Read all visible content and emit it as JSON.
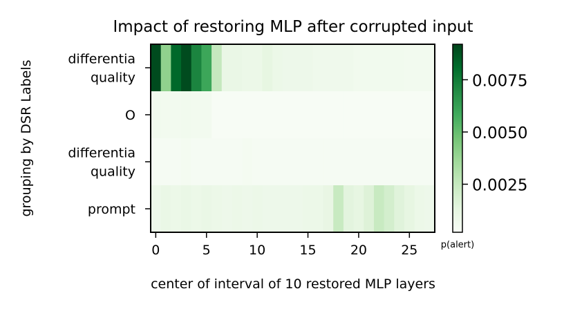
{
  "chart_data": {
    "type": "heatmap",
    "title": "Impact of restoring MLP after corrupted input",
    "xlabel": "center of interval of 10 restored MLP layers",
    "ylabel": "grouping by DSR Labels",
    "x_ticks": [
      "0",
      "5",
      "10",
      "15",
      "20",
      "25"
    ],
    "x_tick_values": [
      0,
      5,
      10,
      15,
      20,
      25
    ],
    "x_range": [
      0,
      27
    ],
    "rows": [
      {
        "label": "differentia\nquality",
        "values": [
          0.009,
          0.004,
          0.0082,
          0.009,
          0.0072,
          0.006,
          0.0025,
          0.001,
          0.001,
          0.0009,
          0.0009,
          0.0012,
          0.0009,
          0.0008,
          0.0008,
          0.0008,
          0.0007,
          0.0007,
          0.0007,
          0.0007,
          0.0006,
          0.0006,
          0.0006,
          0.0006,
          0.0006,
          0.0005,
          0.0005,
          0.0005
        ]
      },
      {
        "label": "O",
        "values": [
          0.0006,
          0.0005,
          0.0005,
          0.0006,
          0.0005,
          0.0005,
          0.0002,
          0.0002,
          0.0002,
          0.0002,
          0.0002,
          0.0002,
          0.0002,
          0.0002,
          0.0002,
          0.0002,
          0.0002,
          0.0002,
          0.0002,
          0.0002,
          0.0002,
          0.0002,
          0.0002,
          0.0002,
          0.0002,
          0.0002,
          0.0002,
          0.0002
        ]
      },
      {
        "label": "differentia\nquality",
        "values": [
          0.0003,
          0.0003,
          0.0003,
          0.0004,
          0.0003,
          0.0003,
          0.0003,
          0.0003,
          0.0003,
          0.0004,
          0.0003,
          0.0003,
          0.0003,
          0.0003,
          0.0003,
          0.0003,
          0.0003,
          0.0003,
          0.0003,
          0.0003,
          0.0003,
          0.0003,
          0.0003,
          0.0003,
          0.0003,
          0.0003,
          0.0003,
          0.0003
        ]
      },
      {
        "label": "prompt",
        "values": [
          0.0008,
          0.001,
          0.0009,
          0.001,
          0.0009,
          0.001,
          0.0009,
          0.0008,
          0.0009,
          0.0008,
          0.0009,
          0.0008,
          0.0008,
          0.0008,
          0.0008,
          0.0009,
          0.0009,
          0.0011,
          0.0024,
          0.0014,
          0.0012,
          0.0016,
          0.0024,
          0.002,
          0.0015,
          0.0012,
          0.0009,
          0.0008
        ]
      }
    ],
    "colorbar": {
      "label": "p(alert)",
      "ticks": [
        "0.0025",
        "0.0050",
        "0.0075"
      ],
      "tick_values": [
        0.0025,
        0.005,
        0.0075
      ],
      "range": [
        0.0002,
        0.0092
      ]
    },
    "colormap": [
      "#f7fcf5",
      "#e5f5e0",
      "#c7e9c0",
      "#a1d99b",
      "#74c476",
      "#41ab5d",
      "#238b45",
      "#006d2c",
      "#00441b"
    ]
  }
}
